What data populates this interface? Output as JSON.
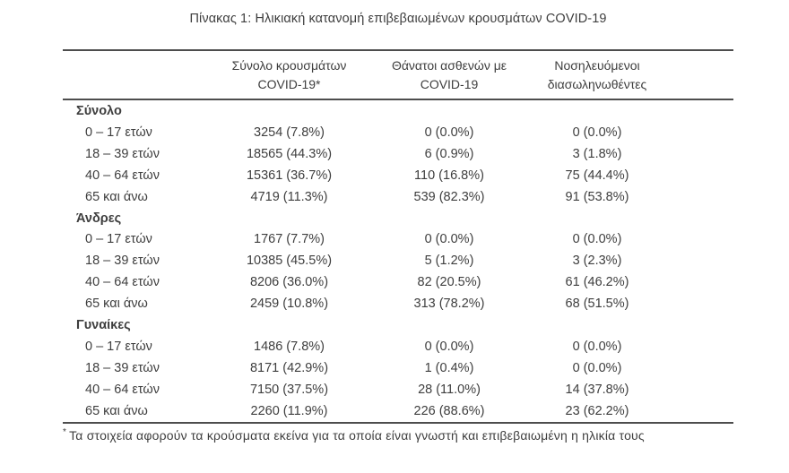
{
  "title": "Πίνακας 1: Ηλικιακή κατανομή επιβεβαιωμένων κρουσμάτων COVID-19",
  "colors": {
    "text": "#3e3e3e",
    "rule": "#4d4d4d",
    "background": "#ffffff"
  },
  "table": {
    "header": {
      "cases_line1": "Σύνολο κρουσμάτων",
      "cases_line2": "COVID-19*",
      "deaths_line1": "Θάνατοι ασθενών με",
      "deaths_line2": "COVID-19",
      "intubated_line1": "Νοσηλευόμενοι",
      "intubated_line2": "διασωληνωθέντες"
    },
    "sections": [
      {
        "label": "Σύνολο",
        "rows": [
          {
            "age": "0 – 17 ετών",
            "cases": "3254 (7.8%)",
            "deaths": "0 (0.0%)",
            "intubated": "0 (0.0%)"
          },
          {
            "age": "18 – 39 ετών",
            "cases": "18565 (44.3%)",
            "deaths": "6 (0.9%)",
            "intubated": "3 (1.8%)"
          },
          {
            "age": "40 – 64 ετών",
            "cases": "15361 (36.7%)",
            "deaths": "110 (16.8%)",
            "intubated": "75 (44.4%)"
          },
          {
            "age": "65 και άνω",
            "cases": "4719 (11.3%)",
            "deaths": "539 (82.3%)",
            "intubated": "91 (53.8%)"
          }
        ]
      },
      {
        "label": "Άνδρες",
        "rows": [
          {
            "age": "0 – 17 ετών",
            "cases": "1767 (7.7%)",
            "deaths": "0 (0.0%)",
            "intubated": "0 (0.0%)"
          },
          {
            "age": "18 – 39 ετών",
            "cases": "10385 (45.5%)",
            "deaths": "5 (1.2%)",
            "intubated": "3 (2.3%)"
          },
          {
            "age": "40 – 64 ετών",
            "cases": "8206 (36.0%)",
            "deaths": "82 (20.5%)",
            "intubated": "61 (46.2%)"
          },
          {
            "age": "65 και άνω",
            "cases": "2459 (10.8%)",
            "deaths": "313 (78.2%)",
            "intubated": "68 (51.5%)"
          }
        ]
      },
      {
        "label": "Γυναίκες",
        "rows": [
          {
            "age": "0 – 17 ετών",
            "cases": "1486 (7.8%)",
            "deaths": "0 (0.0%)",
            "intubated": "0 (0.0%)"
          },
          {
            "age": "18 – 39 ετών",
            "cases": "8171 (42.9%)",
            "deaths": "1 (0.4%)",
            "intubated": "0 (0.0%)"
          },
          {
            "age": "40 – 64 ετών",
            "cases": "7150 (37.5%)",
            "deaths": "28 (11.0%)",
            "intubated": "14 (37.8%)"
          },
          {
            "age": "65 και άνω",
            "cases": "2260 (11.9%)",
            "deaths": "226 (88.6%)",
            "intubated": "23 (62.2%)"
          }
        ]
      }
    ]
  },
  "footnote": {
    "marker": "*",
    "text": "Τα στοιχεία αφορούν τα κρούσματα εκείνα για τα οποία είναι γνωστή και επιβεβαιωμένη η ηλικία τους"
  }
}
